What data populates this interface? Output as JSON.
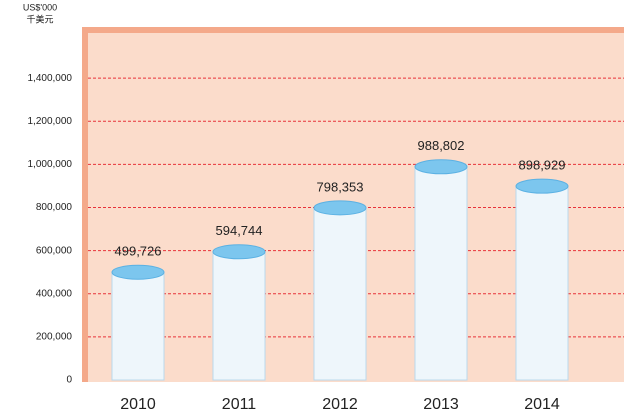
{
  "chart_data": {
    "type": "bar",
    "ylabel_lines": [
      "US$'000",
      "千美元"
    ],
    "categories": [
      "2010",
      "2011",
      "2012",
      "2013",
      "2014"
    ],
    "values": [
      499726,
      594744,
      798353,
      988802,
      898929
    ],
    "value_labels": [
      "499,726",
      "594,744",
      "798,353",
      "988,802",
      "898,929"
    ],
    "color": "#7cc6ee",
    "ylim": [
      0,
      1600000
    ],
    "yticks": [
      0,
      {
        "value": 200000,
        "label": "200,000"
      },
      {
        "value": 400000,
        "label": "400,000"
      },
      {
        "value": 600000,
        "label": "600,000"
      },
      {
        "value": 800000,
        "label": "800,000"
      },
      {
        "value": 1000000,
        "label": "1,000,000"
      },
      {
        "value": 1200000,
        "label": "1,200,000"
      },
      {
        "value": 1400000,
        "label": "1,400,000"
      }
    ],
    "grid": true
  }
}
